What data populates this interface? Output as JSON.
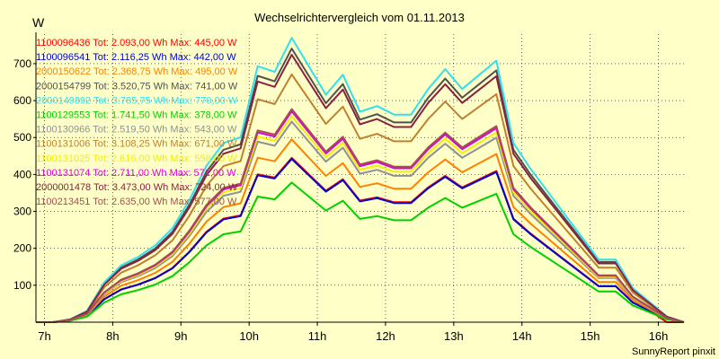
{
  "chart_data": {
    "type": "line",
    "title": "Wechselrichtervergleich vom 01.11.2013",
    "ylabel": "W",
    "xlabel": "",
    "footer": "SunnyReport pinxit",
    "ylim": [
      0,
      780
    ],
    "xlim": [
      6.875,
      16.375
    ],
    "yticks": [
      100,
      200,
      300,
      400,
      500,
      600,
      700
    ],
    "xticks": [
      {
        "value": 7,
        "label": "7h"
      },
      {
        "value": 8,
        "label": "8h"
      },
      {
        "value": 9,
        "label": "9h"
      },
      {
        "value": 10,
        "label": "10h"
      },
      {
        "value": 11,
        "label": "11h"
      },
      {
        "value": 12,
        "label": "12h"
      },
      {
        "value": 13,
        "label": "13h"
      },
      {
        "value": 14,
        "label": "14h"
      },
      {
        "value": 15,
        "label": "15h"
      },
      {
        "value": 16,
        "label": "16h"
      }
    ],
    "grid": true,
    "legend_position": "top-left",
    "x": [
      6.875,
      7.125,
      7.375,
      7.625,
      7.875,
      8.125,
      8.375,
      8.625,
      8.875,
      9.125,
      9.375,
      9.625,
      9.875,
      10.125,
      10.375,
      10.625,
      10.875,
      11.125,
      11.375,
      11.625,
      11.875,
      12.125,
      12.375,
      12.625,
      12.875,
      13.125,
      13.375,
      13.625,
      13.875,
      14.125,
      14.375,
      14.625,
      14.875,
      15.125,
      15.375,
      15.625,
      15.875,
      16.125,
      16.375
    ],
    "shape": [
      0,
      0,
      0.01,
      0.04,
      0.14,
      0.2,
      0.23,
      0.27,
      0.33,
      0.43,
      0.55,
      0.63,
      0.65,
      0.9,
      0.88,
      1.0,
      0.9,
      0.8,
      0.87,
      0.74,
      0.76,
      0.73,
      0.73,
      0.82,
      0.89,
      0.82,
      0.87,
      0.92,
      0.63,
      0.54,
      0.46,
      0.38,
      0.3,
      0.22,
      0.22,
      0.12,
      0.07,
      0.02,
      0
    ],
    "series": [
      {
        "name": "1100096436",
        "legend": "1100096436 Tot: 2.093,00 Wh Max: 445,00 W",
        "color": "#ff0000",
        "max": 445,
        "start": 2,
        "end": 36
      },
      {
        "name": "1100096541",
        "legend": "1100096541 Tot: 2.116,25 Wh Max: 442,00 W",
        "color": "#0000d0",
        "max": 442,
        "start": 2,
        "end": 38
      },
      {
        "name": "2000150622",
        "legend": "2000150622 Tot: 2.368,75 Wh Max: 495,00 W",
        "color": "#ff8000",
        "max": 495,
        "start": 2,
        "end": 38
      },
      {
        "name": "2000154799",
        "legend": "2000154799 Tot: 3.520,75 Wh Max: 741,00 W",
        "color": "#505050",
        "max": 741,
        "start": 2,
        "end": 38
      },
      {
        "name": "2000149892",
        "legend": "2000149892 Tot: 3.785,75 Wh Max: 770,00 W",
        "color": "#30e0f0",
        "max": 770,
        "start": 1,
        "end": 38
      },
      {
        "name": "1100129553",
        "legend": "1100129553 Tot: 1.741,50 Wh Max: 378,00 W",
        "color": "#00d000",
        "max": 378,
        "start": 2,
        "end": 38
      },
      {
        "name": "1100130966",
        "legend": "1100130966 Tot: 2.519,50 Wh Max: 543,00 W",
        "color": "#909090",
        "max": 543,
        "start": 2,
        "end": 38
      },
      {
        "name": "1100131006",
        "legend": "1100131006 Tot: 3.108,25 Wh Max: 671,00 W",
        "color": "#c08030",
        "max": 671,
        "start": 2,
        "end": 38
      },
      {
        "name": "1100131025",
        "legend": "1100131025 Tot: 2.616,00 Wh Max: 558,00 W",
        "color": "#f0f000",
        "max": 558,
        "start": 2,
        "end": 38
      },
      {
        "name": "1100131074",
        "legend": "1100131074 Tot: 2.711,00 Wh Max: 571,00 W",
        "color": "#e000e0",
        "max": 571,
        "start": 2,
        "end": 38
      },
      {
        "name": "2000001478",
        "legend": "2000001478 Tot: 3.473,00 Wh Max: 724,00 W",
        "color": "#8b2040",
        "max": 724,
        "start": 2,
        "end": 38
      },
      {
        "name": "1100213451",
        "legend": "1100213451 Tot: 2.635,00 Wh Max: 577,00 W",
        "color": "#a05050",
        "max": 577,
        "start": 2,
        "end": 38
      }
    ]
  }
}
